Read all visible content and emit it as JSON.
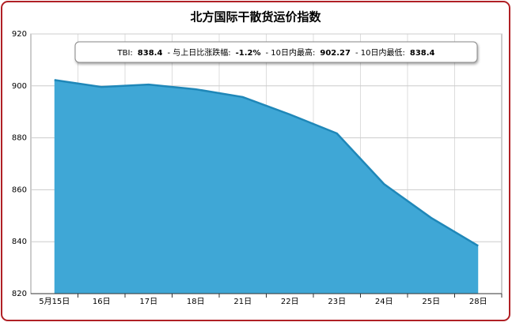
{
  "chart_data": {
    "type": "area",
    "title": "北方国际干散货运价指数",
    "categories": [
      "5月15日",
      "16日",
      "17日",
      "18日",
      "21日",
      "22日",
      "23日",
      "24日",
      "25日",
      "28日"
    ],
    "values": [
      902.27,
      899.6,
      900.5,
      898.7,
      895.7,
      889,
      881.7,
      862.2,
      849.2,
      838.4
    ],
    "color": "#3fa7d6",
    "line_color": "#1f87b8",
    "ylim": [
      820,
      920
    ],
    "yticks": [
      820,
      840,
      860,
      880,
      900,
      920
    ],
    "grid": true,
    "annotation": [
      {
        "label": "TBI:",
        "value": "838.4"
      },
      {
        "label": "- 与上日比涨跌幅:",
        "value": "-1.2%"
      },
      {
        "label": "- 10日内最高:",
        "value": "902.27"
      },
      {
        "label": "- 10日内最低:",
        "value": "838.4"
      }
    ]
  }
}
